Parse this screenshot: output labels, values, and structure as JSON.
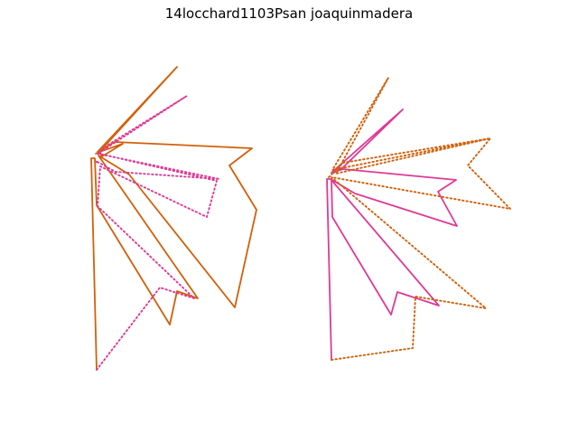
{
  "title": "14locchard1103Psan joaquinmadera",
  "colors": {
    "orange": "#d2600a",
    "magenta": "#de3a95"
  },
  "panels": [
    {
      "name": "left",
      "solid_color": "orange",
      "dotted_color": "magenta"
    },
    {
      "name": "right",
      "solid_color": "magenta",
      "dotted_color": "orange"
    }
  ]
}
